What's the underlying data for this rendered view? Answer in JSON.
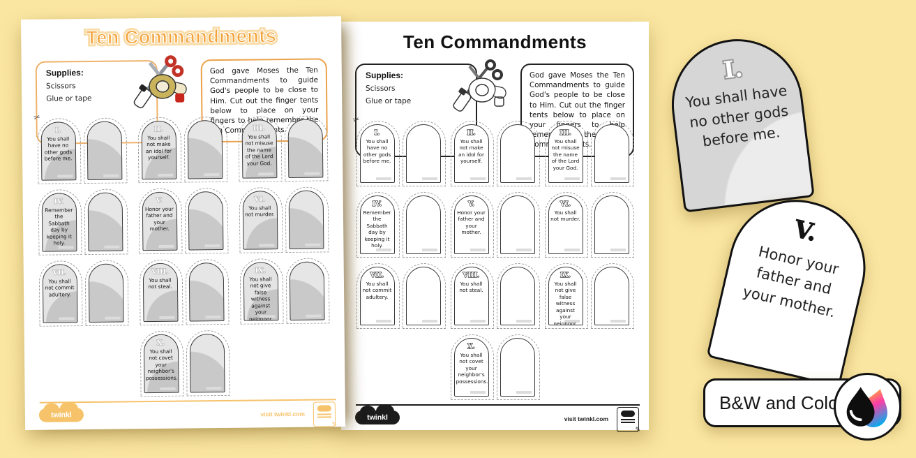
{
  "colors": {
    "background": "#FAE6A1",
    "accent_orange": "#F4A33C",
    "logo_orange": "#F6C36B",
    "tablet_gray": "#D6D6D6",
    "ink_black": "#121212"
  },
  "pages": {
    "color": {
      "title": "Ten Commandments",
      "supplies_heading": "Supplies:",
      "supplies_items": [
        "Scissors",
        "Glue or tape"
      ],
      "instructions": "God gave Moses the Ten Commandments to guide God's people to be close to Him. Cut out the finger tents below to place on your fingers to help remember the Ten Commandments.",
      "logo_text": "twinkl",
      "visit_text": "visit twinkl.com"
    },
    "bw": {
      "title": "Ten Commandments",
      "supplies_heading": "Supplies:",
      "supplies_items": [
        "Scissors",
        "Glue or tape"
      ],
      "instructions": "God gave Moses the Ten Commandments to guide God's people to be close to Him. Cut out the finger tents below to place on your fingers to help remember the Ten Commandments.",
      "logo_text": "twinkl",
      "visit_text": "visit twinkl.com"
    }
  },
  "commandments": [
    {
      "numeral": "I.",
      "text": "You shall have no other gods before me."
    },
    {
      "numeral": "II.",
      "text": "You shall not make an idol for yourself."
    },
    {
      "numeral": "III.",
      "text": "You shall not misuse the name of the Lord your God."
    },
    {
      "numeral": "IV.",
      "text": "Remember the Sabbath day by keeping it holy."
    },
    {
      "numeral": "V.",
      "text": "Honor your father and your mother."
    },
    {
      "numeral": "VI.",
      "text": "You shall not murder."
    },
    {
      "numeral": "VII.",
      "text": "You shall not commit adultery."
    },
    {
      "numeral": "VIII.",
      "text": "You shall not steal."
    },
    {
      "numeral": "IX.",
      "text": "You shall not give false witness against your neighbor."
    },
    {
      "numeral": "X.",
      "text": "You shall not covet your neighbor's possessions."
    }
  ],
  "cutouts": {
    "first": {
      "numeral": "I.",
      "text": "You shall have no other gods before me."
    },
    "second": {
      "numeral": "V.",
      "text": "Honor your father and your mother."
    }
  },
  "badge": {
    "label": "B&W and Color"
  }
}
